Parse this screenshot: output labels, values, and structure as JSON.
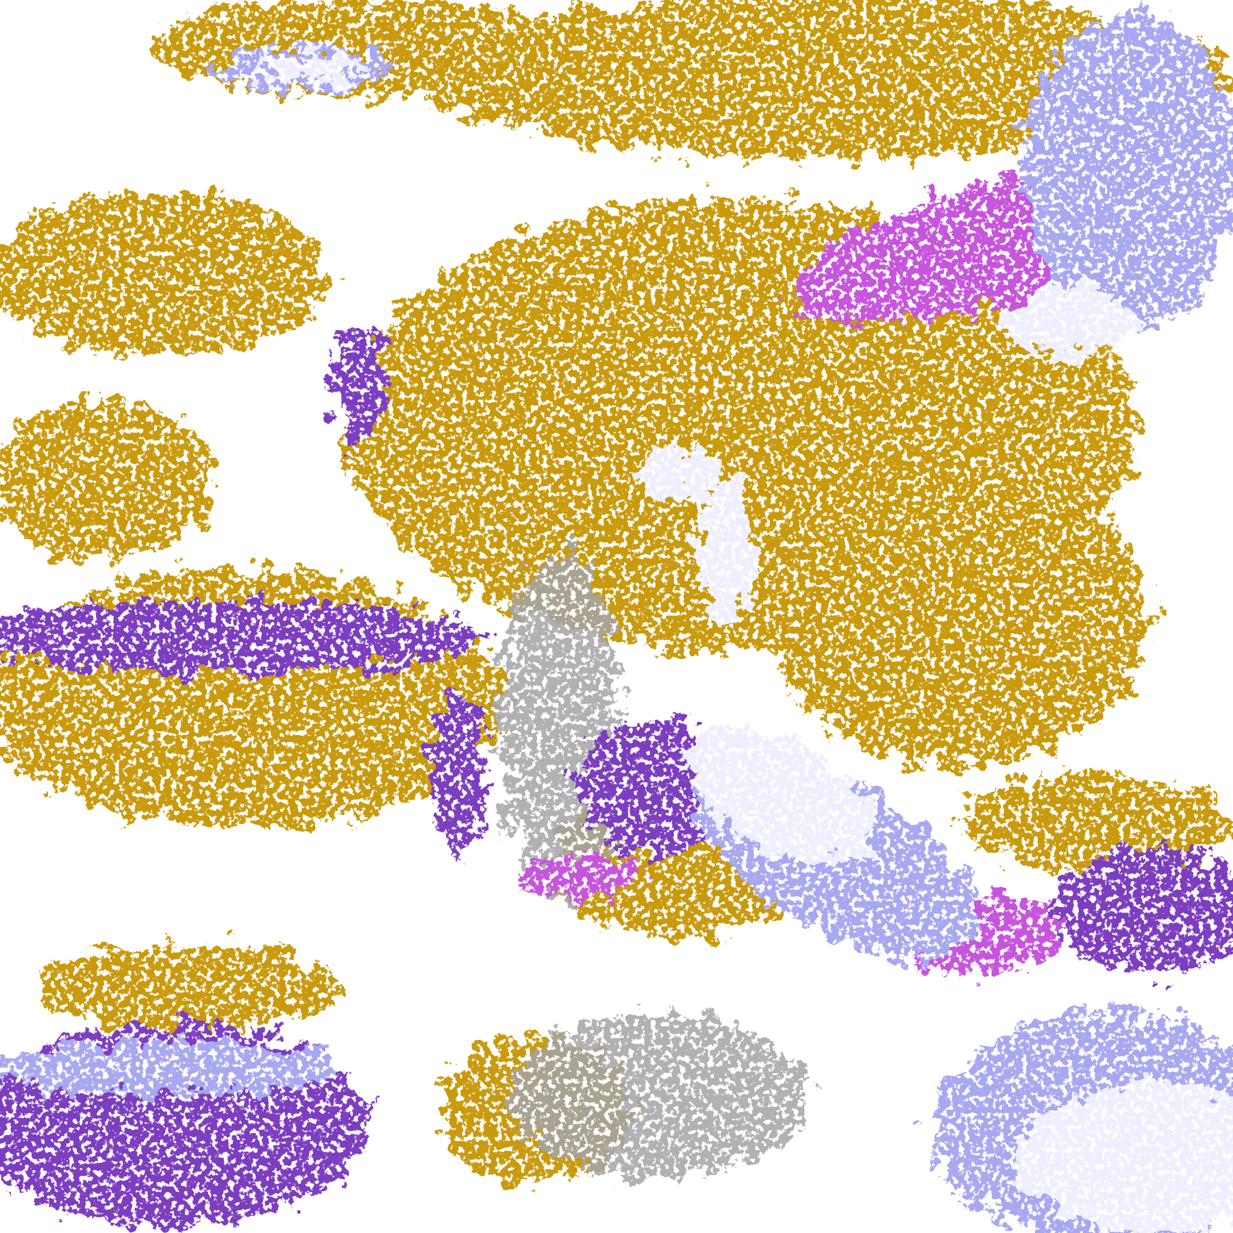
{
  "image": {
    "kind": "classified satellite cloud imagery",
    "palette": {
      "background": "#ffffff",
      "gold": "#c99a0c",
      "dark_gold": "#a87f08",
      "purple": "#7b3cbf",
      "magenta": "#c655dc",
      "lavender": "#eeeeff",
      "periwinkle": "#a8a8f0",
      "gray": "#a4a4a8"
    }
  }
}
